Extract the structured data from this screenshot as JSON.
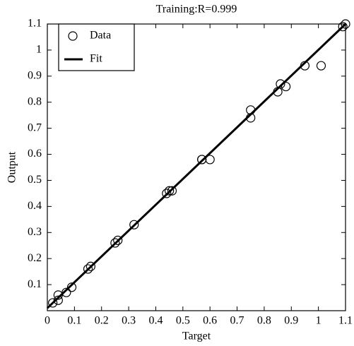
{
  "chart_data": {
    "type": "scatter",
    "title": "Training:R=0.999",
    "xlabel": "Target",
    "ylabel": "Output",
    "xlim": [
      0,
      1.1
    ],
    "ylim": [
      0,
      1.1
    ],
    "xticks": [
      0,
      0.1,
      0.2,
      0.3,
      0.4,
      0.5,
      0.6,
      0.7,
      0.8,
      0.9,
      1,
      1.1
    ],
    "yticks": [
      0.1,
      0.2,
      0.3,
      0.4,
      0.5,
      0.6,
      0.7,
      0.8,
      0.9,
      1,
      1.1
    ],
    "legend": "upper left",
    "series": [
      {
        "name": "Data",
        "type": "scatter",
        "color": "#000000",
        "x": [
          0.02,
          0.04,
          0.04,
          0.07,
          0.09,
          0.15,
          0.16,
          0.25,
          0.26,
          0.32,
          0.44,
          0.45,
          0.46,
          0.57,
          0.57,
          0.6,
          0.75,
          0.75,
          0.85,
          0.86,
          0.88,
          0.95,
          1.01,
          1.09,
          1.1
        ],
        "values": [
          0.03,
          0.04,
          0.06,
          0.07,
          0.09,
          0.16,
          0.17,
          0.26,
          0.27,
          0.33,
          0.45,
          0.46,
          0.46,
          0.58,
          0.58,
          0.58,
          0.74,
          0.77,
          0.84,
          0.87,
          0.86,
          0.94,
          0.94,
          1.09,
          1.1
        ]
      },
      {
        "name": "Fit",
        "type": "line",
        "color": "#000000",
        "x": [
          0,
          1.1
        ],
        "values": [
          0.01,
          1.1
        ]
      }
    ]
  }
}
